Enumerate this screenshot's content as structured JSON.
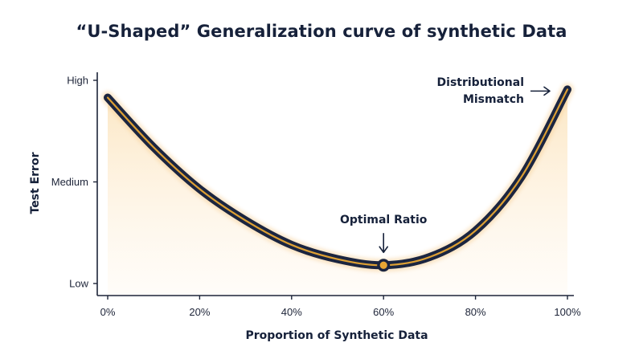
{
  "chart_data": {
    "type": "line",
    "title": "“U-Shaped” Generalization curve of synthetic Data",
    "xlabel": "Proportion of Synthetic Data",
    "ylabel": "Test Error",
    "x_ticks": [
      "0%",
      "20%",
      "40%",
      "60%",
      "80%",
      "100%"
    ],
    "y_ticks": [
      "Low",
      "Medium",
      "High"
    ],
    "xlim": [
      0,
      100
    ],
    "ylim": [
      0,
      2
    ],
    "grid": false,
    "series": [
      {
        "x": [
          0,
          10,
          20,
          30,
          40,
          50,
          60,
          70,
          80,
          90,
          100
        ],
        "values": [
          1.83,
          1.34,
          0.93,
          0.62,
          0.38,
          0.24,
          0.18,
          0.26,
          0.52,
          1.05,
          1.91
        ]
      }
    ],
    "annotations": [
      {
        "text": "Optimal Ratio",
        "x": 60,
        "y": 0.18
      },
      {
        "text": "Distributional\nMismatch",
        "x": 100,
        "y": 1.91
      }
    ],
    "colors": {
      "line_outer": "#1b2540",
      "line_inner": "#e8a634",
      "fill": "#fdebd0",
      "text": "#16213a"
    }
  }
}
